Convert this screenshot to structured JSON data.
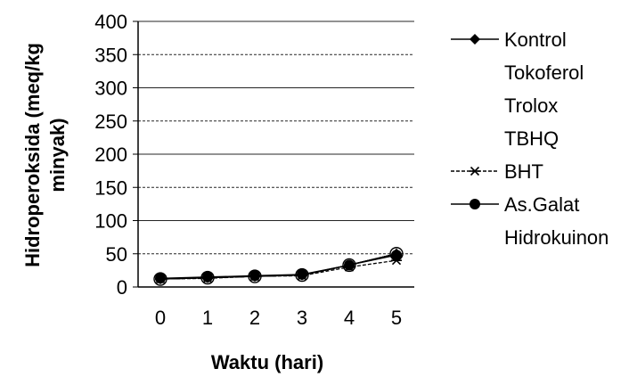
{
  "chart_data": {
    "type": "line",
    "xlabel": "Waktu (hari)",
    "ylabel_lines": [
      "Hidroperoksida (meq/kg",
      "minyak)"
    ],
    "x": [
      0,
      1,
      2,
      3,
      4,
      5
    ],
    "x_tick_labels": [
      "0",
      "1",
      "2",
      "3",
      "4",
      "5"
    ],
    "ylim": [
      0,
      400
    ],
    "y_ticks": [
      0,
      50,
      100,
      150,
      200,
      250,
      300,
      350,
      400
    ],
    "y_tick_labels": [
      "0",
      "50",
      "100",
      "150",
      "200",
      "250",
      "300",
      "350",
      "400"
    ],
    "grid": true,
    "legend_position": "right",
    "series": [
      {
        "name": "Kontrol",
        "marker": "diamond",
        "show_line_in_legend": true,
        "values": [
          12,
          14,
          16,
          18,
          33,
          50
        ]
      },
      {
        "name": "Tokoferol",
        "marker": "none",
        "show_line_in_legend": false,
        "values": [
          12,
          14,
          16,
          18,
          33,
          50
        ]
      },
      {
        "name": "Trolox",
        "marker": "none",
        "show_line_in_legend": false,
        "values": [
          12,
          14,
          16,
          18,
          33,
          50
        ]
      },
      {
        "name": "TBHQ",
        "marker": "none",
        "show_line_in_legend": false,
        "values": [
          12,
          14,
          16,
          18,
          33,
          50
        ]
      },
      {
        "name": "BHT",
        "marker": "asterisk",
        "show_line_in_legend": true,
        "values": [
          12,
          13,
          16,
          17,
          30,
          40
        ]
      },
      {
        "name": "As.Galat",
        "marker": "circle",
        "show_line_in_legend": true,
        "values": [
          13,
          15,
          17,
          19,
          33,
          48
        ]
      },
      {
        "name": "Hidrokuinon",
        "marker": "none",
        "show_line_in_legend": false,
        "values": [
          12,
          14,
          16,
          18,
          33,
          50
        ]
      }
    ]
  }
}
